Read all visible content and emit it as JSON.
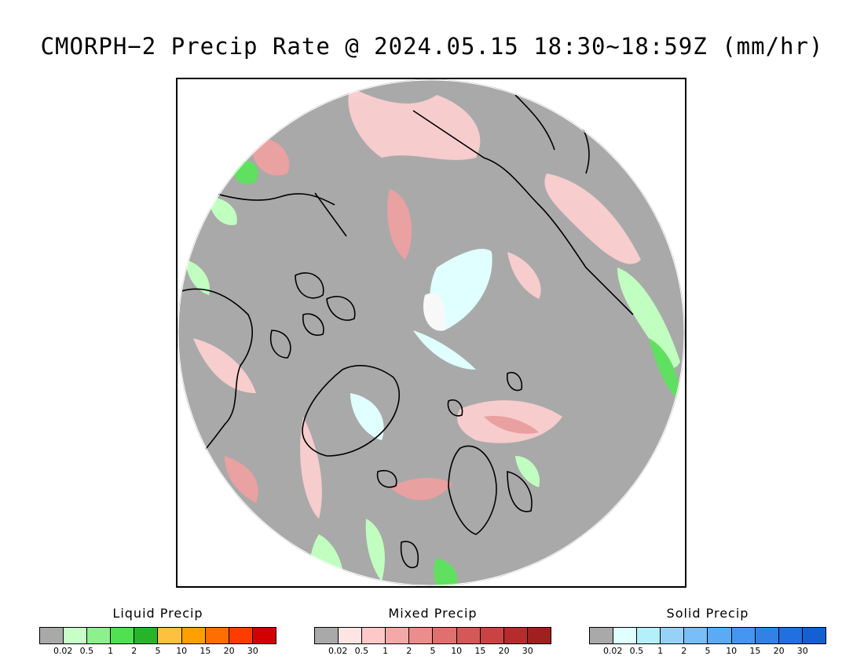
{
  "title": "CMORPH−2 Precip Rate @ 2024.05.15 18:30∼18:59Z (mm/hr)",
  "colors": {
    "ocean_no_precip": "#a9a9a9",
    "land_no_precip": "#a9a9a9",
    "coastline": "#000000",
    "liquid_light": "#c0ffc0",
    "liquid_mid": "#60e060",
    "mixed_light": "#ffd0d0",
    "mixed_mid": "#f0a0a0",
    "solid_light": "#e0ffff",
    "solid_white": "#f8f8f8"
  },
  "legends": [
    {
      "title": "Liquid Precip",
      "colors": [
        "#a9a9a9",
        "#c8ffc8",
        "#8cf08c",
        "#50e050",
        "#28b428",
        "#ffc040",
        "#ffa000",
        "#ff6e00",
        "#ff3c00",
        "#d20000"
      ],
      "ticks": [
        "0.02",
        "0.5",
        "1",
        "2",
        "5",
        "10",
        "15",
        "20",
        "30"
      ]
    },
    {
      "title": "Mixed Precip",
      "colors": [
        "#a9a9a9",
        "#ffe4e4",
        "#ffc8c8",
        "#f4a8a8",
        "#ec8c8c",
        "#e07070",
        "#d45858",
        "#c84444",
        "#b42c2c",
        "#a02020"
      ],
      "ticks": [
        "0.02",
        "0.5",
        "1",
        "2",
        "5",
        "10",
        "15",
        "20",
        "30"
      ]
    },
    {
      "title": "Solid Precip",
      "colors": [
        "#a9a9a9",
        "#e0ffff",
        "#b4f0fa",
        "#96d2f8",
        "#78bef8",
        "#5aaaf5",
        "#4496f0",
        "#3282e6",
        "#2070e0",
        "#1460d2"
      ],
      "ticks": [
        "0.02",
        "0.5",
        "1",
        "2",
        "5",
        "10",
        "15",
        "20",
        "30"
      ]
    }
  ]
}
